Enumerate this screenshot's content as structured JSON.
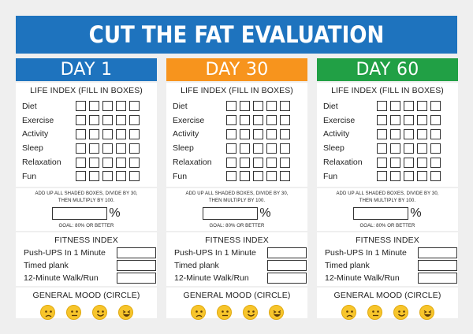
{
  "title": "CUT THE FAT EVALUATION",
  "colors": {
    "banner": "#1e73be",
    "day1": "#1e73be",
    "day30": "#f7941d",
    "day60": "#21a045",
    "emoji": "#f7c52b"
  },
  "columns": [
    {
      "heading": "DAY 1"
    },
    {
      "heading": "DAY 30"
    },
    {
      "heading": "DAY 60"
    }
  ],
  "life_index": {
    "title": "LIFE INDEX (FILL IN BOXES)",
    "rows": [
      "Diet",
      "Exercise",
      "Activity",
      "Sleep",
      "Relaxation",
      "Fun"
    ],
    "boxes_per_row": 5
  },
  "calc": {
    "instruction_line1": "ADD UP ALL SHADED BOXES, DIVIDE BY 30,",
    "instruction_line2": "THEN MULTIPLY BY 100.",
    "percent_sign": "%",
    "goal": "GOAL: 80% OR BETTER"
  },
  "fitness": {
    "title": "FITNESS INDEX",
    "rows": [
      "Push-UPS In 1 Minute",
      "Timed plank",
      "12-Minute Walk/Run"
    ]
  },
  "mood": {
    "title": "GENERAL MOOD (CIRCLE)",
    "faces": [
      "sad-face-icon",
      "neutral-face-icon",
      "smile-face-icon",
      "laughing-face-icon"
    ]
  }
}
